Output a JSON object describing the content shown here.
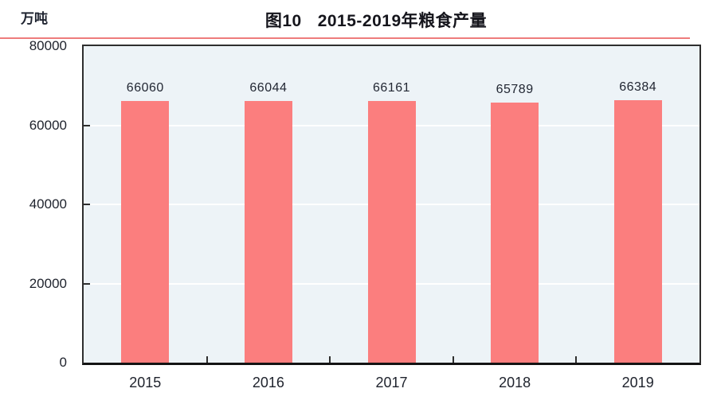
{
  "title": {
    "figure_no": "图10",
    "text": "2015-2019年粮食产量"
  },
  "chart_data": {
    "type": "bar",
    "title": "图10 2015-2019年粮食产量",
    "unit_label": "万吨",
    "categories": [
      "2015",
      "2016",
      "2017",
      "2018",
      "2019"
    ],
    "values": [
      66060,
      66044,
      66161,
      65789,
      66384
    ],
    "bar_labels": [
      "66060",
      "66044",
      "66161",
      "65789",
      "66384"
    ],
    "ylim": [
      0,
      80000
    ],
    "yticks": [
      0,
      20000,
      40000,
      60000,
      80000
    ],
    "gridlines_at": [
      20000,
      40000,
      60000
    ],
    "legend": "none",
    "colors": {
      "bar": "#fb7e7e",
      "plot_background": "#edf3f7",
      "gridline": "#ffffff",
      "title_rule": "#ee7c7c",
      "frame": "#2e2e2e",
      "text": "#20242e"
    }
  }
}
